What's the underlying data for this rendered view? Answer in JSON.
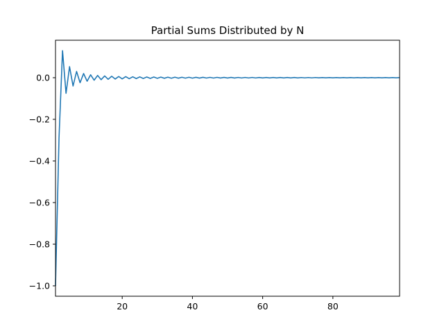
{
  "chart_data": {
    "type": "line",
    "title": "Partial Sums Distributed by N",
    "xlabel": "",
    "ylabel": "",
    "xlim": [
      1,
      99
    ],
    "ylim": [
      -1.05,
      0.18
    ],
    "grid": false,
    "x_ticks": [
      20,
      40,
      60,
      80
    ],
    "x_tick_labels": [
      "20",
      "40",
      "60",
      "80"
    ],
    "y_ticks": [
      0.0,
      -0.2,
      -0.4,
      -0.6,
      -0.8,
      -1.0
    ],
    "y_tick_labels": [
      "0.0",
      "−0.2",
      "−0.4",
      "−0.6",
      "−0.8",
      "−1.0"
    ],
    "series": [
      {
        "color": "#1f77b4",
        "x": [
          1,
          2,
          3,
          4,
          5,
          6,
          7,
          8,
          9,
          10,
          11,
          12,
          13,
          14,
          15,
          16,
          17,
          18,
          19,
          20,
          21,
          22,
          23,
          24,
          25,
          26,
          27,
          28,
          29,
          30,
          31,
          32,
          33,
          34,
          35,
          36,
          37,
          38,
          39,
          40,
          41,
          42,
          43,
          44,
          45,
          46,
          47,
          48,
          49,
          50,
          51,
          52,
          53,
          54,
          55,
          56,
          57,
          58,
          59,
          60,
          61,
          62,
          63,
          64,
          65,
          66,
          67,
          68,
          69,
          70,
          71,
          72,
          73,
          74,
          75,
          76,
          77,
          78,
          79,
          80,
          81,
          82,
          83,
          84,
          85,
          86,
          87,
          88,
          89,
          90,
          91,
          92,
          93,
          94,
          95,
          96,
          97,
          98,
          99
        ],
        "values": [
          -1.0,
          -0.29,
          0.13,
          -0.075,
          0.053,
          -0.04,
          0.03,
          -0.024,
          0.02,
          -0.017,
          0.014,
          -0.012,
          0.011,
          -0.0095,
          0.0085,
          -0.0077,
          0.007,
          -0.0064,
          0.0059,
          -0.0055,
          0.0051,
          -0.0047,
          0.0044,
          -0.0042,
          0.0039,
          -0.0037,
          0.0035,
          -0.0033,
          0.0032,
          -0.003,
          0.0029,
          -0.0027,
          0.0026,
          -0.0025,
          0.0024,
          -0.0023,
          0.0022,
          -0.0021,
          0.0021,
          -0.002,
          0.0019,
          -0.0018,
          0.0018,
          -0.0017,
          0.0017,
          -0.0016,
          0.0016,
          -0.0015,
          0.0015,
          -0.0014,
          0.0014,
          -0.0014,
          0.0013,
          -0.0013,
          0.0012,
          -0.0012,
          0.0012,
          -0.0012,
          0.0011,
          -0.0011,
          0.0011,
          -0.001,
          0.001,
          -0.001,
          0.001,
          -0.00097,
          0.00095,
          -0.00093,
          0.00091,
          -0.00089,
          0.00087,
          -0.00085,
          0.00083,
          -0.00081,
          0.0008,
          -0.00078,
          0.00077,
          -0.00075,
          0.00074,
          -0.00072,
          0.00071,
          -0.0007,
          0.00069,
          -0.00067,
          0.00066,
          -0.00065,
          0.00064,
          -0.00063,
          0.00062,
          -0.00061,
          0.0006,
          -0.00059,
          0.00058,
          -0.00057,
          0.00057,
          -0.00056,
          0.00055,
          -0.00054,
          0.00053
        ]
      }
    ]
  }
}
